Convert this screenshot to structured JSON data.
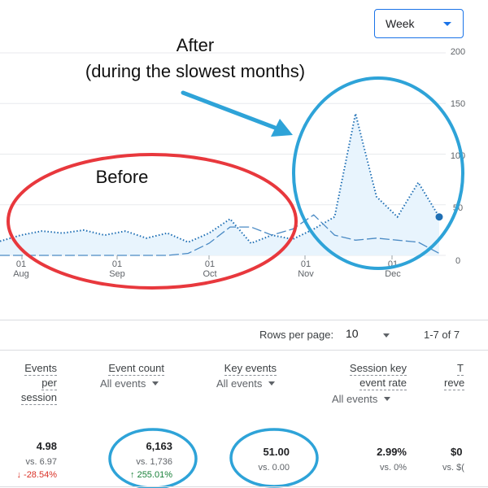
{
  "toolbar": {
    "period_label": "Week"
  },
  "chart": {
    "y_ticks": [
      "200",
      "150",
      "100",
      "50",
      "0"
    ],
    "x_ticks": [
      {
        "day": "01",
        "month": "Aug"
      },
      {
        "day": "01",
        "month": "Sep"
      },
      {
        "day": "01",
        "month": "Oct"
      },
      {
        "day": "01",
        "month": "Nov"
      },
      {
        "day": "01",
        "month": "Dec"
      }
    ]
  },
  "chart_data": {
    "type": "line",
    "x": [
      "Jul 25",
      "Aug 1",
      "Aug 8",
      "Aug 15",
      "Aug 22",
      "Aug 29",
      "Sep 5",
      "Sep 12",
      "Sep 19",
      "Sep 26",
      "Oct 3",
      "Oct 10",
      "Oct 17",
      "Oct 24",
      "Oct 31",
      "Nov 7",
      "Nov 14",
      "Nov 21",
      "Nov 28",
      "Dec 5",
      "Dec 12",
      "Dec 19"
    ],
    "series": [
      {
        "values": [
          14,
          20,
          24,
          22,
          25,
          20,
          24,
          17,
          22,
          13,
          22,
          36,
          12,
          20,
          16,
          26,
          38,
          140,
          58,
          38,
          72,
          38
        ]
      },
      {
        "values": [
          0,
          0,
          0,
          0,
          0,
          0,
          0,
          0,
          0,
          2,
          12,
          28,
          28,
          20,
          26,
          40,
          20,
          15,
          17,
          15,
          13,
          2
        ]
      }
    ],
    "ylim": [
      0,
      200
    ],
    "grid": true
  },
  "annotations": {
    "after_line1": "After",
    "after_line2": "(during the slowest months)",
    "before": "Before"
  },
  "pagination": {
    "rows_label": "Rows per page:",
    "rows_value": "10",
    "range": "1-7 of 7"
  },
  "table": {
    "col_events_per_session": [
      "Events",
      "per",
      "session"
    ],
    "col_event_count": "Event count",
    "col_key_events": "Key events",
    "col_session_key_rate": [
      "Session key",
      "event rate"
    ],
    "col_revenue": [
      "T",
      "reve"
    ],
    "filter_label": "All events",
    "row": {
      "events_per_session": {
        "value": "4.98",
        "vs": "vs. 6.97",
        "change": "↓ -28.54%"
      },
      "event_count": {
        "value": "6,163",
        "vs": "vs. 1,736",
        "change": "↑ 255.01%"
      },
      "key_events": {
        "value": "51.00",
        "vs": "vs. 0.00"
      },
      "session_key_rate": {
        "value": "2.99%",
        "vs": "vs. 0%"
      },
      "revenue": {
        "value": "$0",
        "vs": "vs. $("
      }
    }
  },
  "colors": {
    "accent": "#1a73e8",
    "annotation_blue": "#2ea3d8",
    "annotation_red": "#e8383d",
    "line": "#1f6fb4",
    "fill": "#e8f4fd"
  }
}
